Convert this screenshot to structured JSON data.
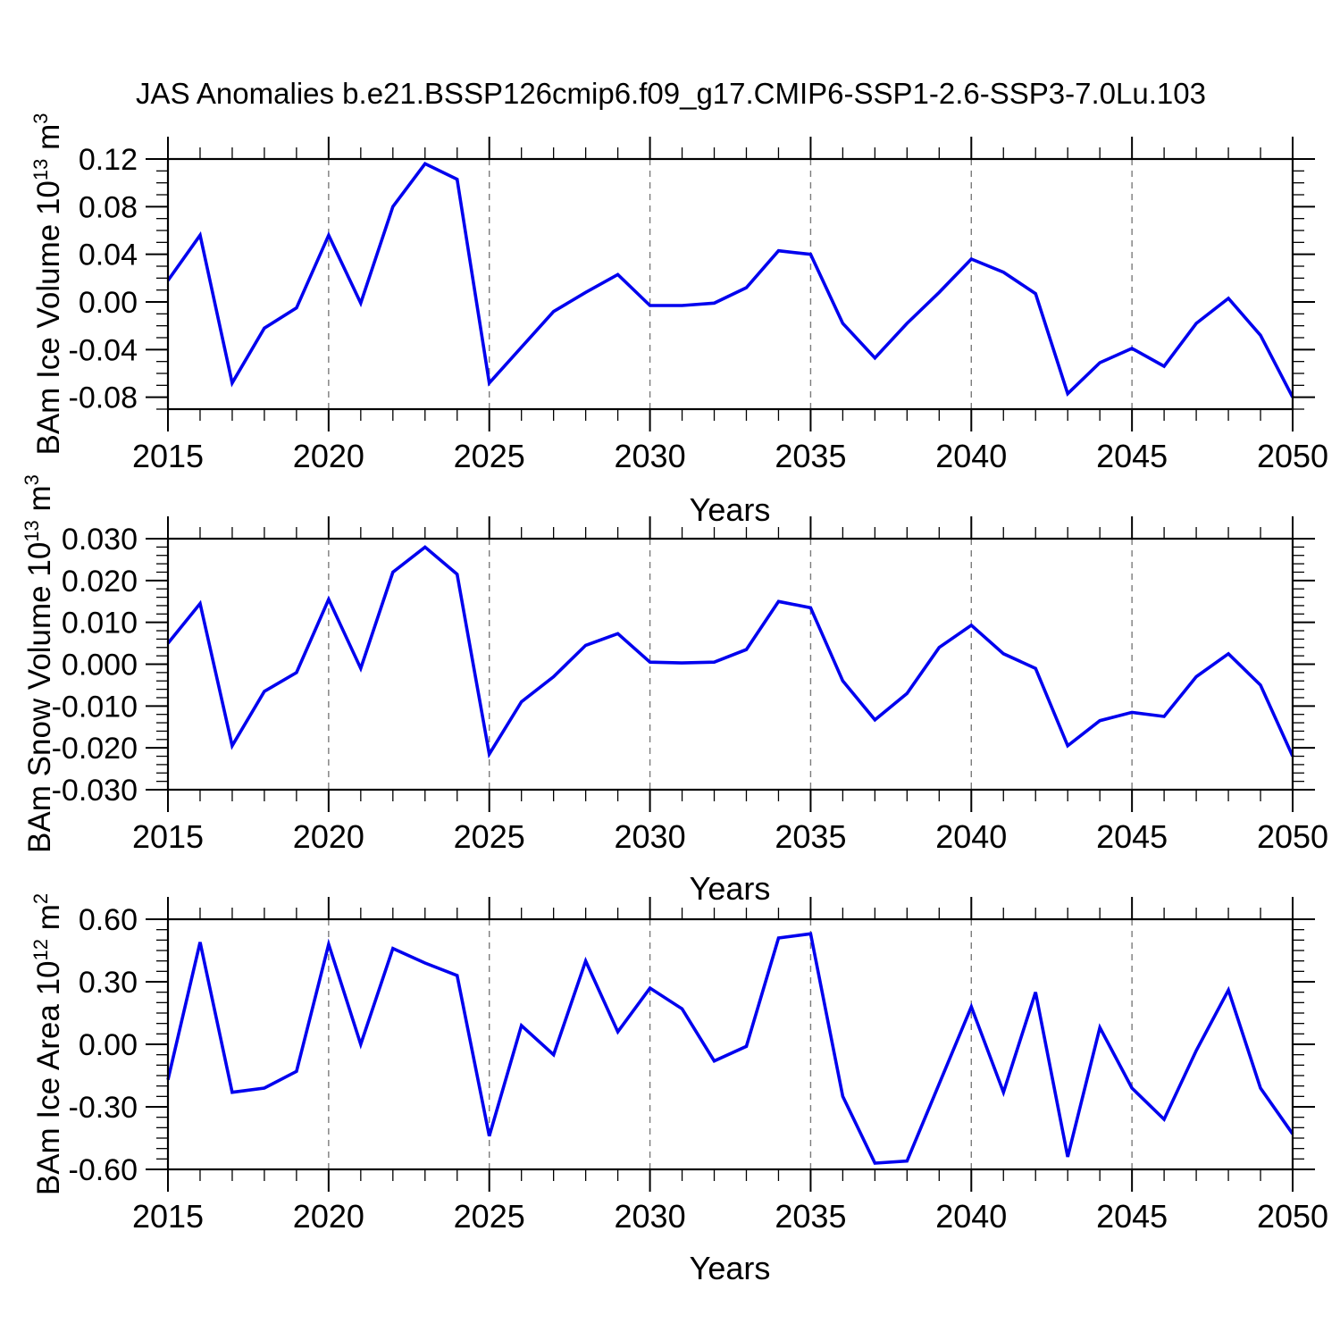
{
  "title": "JAS Anomalies b.e21.BSSP126cmip6.f09_g17.CMIP6-SSP1-2.6-SSP3-7.0Lu.103",
  "colors": {
    "line": "#0000EE",
    "grid": "#7b7b7b",
    "axis": "#000000"
  },
  "years": [
    2015,
    2016,
    2017,
    2018,
    2019,
    2020,
    2021,
    2022,
    2023,
    2024,
    2025,
    2026,
    2027,
    2028,
    2029,
    2030,
    2031,
    2032,
    2033,
    2034,
    2035,
    2036,
    2037,
    2038,
    2039,
    2040,
    2041,
    2042,
    2043,
    2044,
    2045,
    2046,
    2047,
    2048,
    2049,
    2050
  ],
  "x_axis": {
    "min": 2015,
    "max": 2050,
    "ticks": [
      {
        "v": 2015,
        "label": "2015"
      },
      {
        "v": 2020,
        "label": "2020"
      },
      {
        "v": 2025,
        "label": "2025"
      },
      {
        "v": 2030,
        "label": "2030"
      },
      {
        "v": 2035,
        "label": "2035"
      },
      {
        "v": 2040,
        "label": "2040"
      },
      {
        "v": 2045,
        "label": "2045"
      },
      {
        "v": 2050,
        "label": "2050"
      }
    ],
    "minor_step": 1,
    "grid_years": [
      2020,
      2025,
      2030,
      2035,
      2040,
      2045
    ]
  },
  "chart_data": [
    {
      "type": "line",
      "id": "ice-volume",
      "ylabel_plain": "BAm Ice Volume 10^13 m^3",
      "ylabel_parts": [
        {
          "t": "BAm Ice Volume 10"
        },
        {
          "t": "13",
          "sup": true
        },
        {
          "t": " m"
        },
        {
          "t": "3",
          "sup": true
        }
      ],
      "xlabel": "Years",
      "ylim": [
        -0.09,
        0.12
      ],
      "yminor_step": 0.01,
      "yticks": [
        {
          "v": 0.12,
          "label": "0.12"
        },
        {
          "v": 0.08,
          "label": "0.08"
        },
        {
          "v": 0.04,
          "label": "0.04"
        },
        {
          "v": 0.0,
          "label": "0.00"
        },
        {
          "v": -0.04,
          "label": "-0.04"
        },
        {
          "v": -0.08,
          "label": "-0.08"
        }
      ],
      "values": [
        0.018,
        0.056,
        -0.068,
        -0.022,
        -0.005,
        0.056,
        -0.001,
        0.08,
        0.116,
        0.103,
        -0.068,
        -0.038,
        -0.008,
        0.008,
        0.023,
        -0.003,
        -0.003,
        -0.001,
        0.012,
        0.043,
        0.04,
        -0.018,
        -0.047,
        -0.018,
        0.008,
        0.036,
        0.025,
        0.007,
        -0.077,
        -0.051,
        -0.039,
        -0.054,
        -0.018,
        0.003,
        -0.028,
        -0.08
      ]
    },
    {
      "type": "line",
      "id": "snow-volume",
      "ylabel_plain": "BAm Snow Volume 10^13 m^3",
      "ylabel_parts": [
        {
          "t": "BAm Snow Volume 10"
        },
        {
          "t": "13",
          "sup": true
        },
        {
          "t": " m"
        },
        {
          "t": "3",
          "sup": true
        }
      ],
      "xlabel": "Years",
      "ylim": [
        -0.03,
        0.03
      ],
      "yminor_step": 0.002,
      "yticks": [
        {
          "v": 0.03,
          "label": "0.030"
        },
        {
          "v": 0.02,
          "label": "0.020"
        },
        {
          "v": 0.01,
          "label": "0.010"
        },
        {
          "v": 0.0,
          "label": "0.000"
        },
        {
          "v": -0.01,
          "label": "-0.010"
        },
        {
          "v": -0.02,
          "label": "-0.020"
        },
        {
          "v": -0.03,
          "label": "-0.030"
        }
      ],
      "values": [
        0.005,
        0.0145,
        -0.0195,
        -0.0065,
        -0.002,
        0.0155,
        -0.001,
        0.022,
        0.028,
        0.0215,
        -0.0215,
        -0.009,
        -0.003,
        0.0045,
        0.0073,
        0.0005,
        0.0003,
        0.0005,
        0.0035,
        0.015,
        0.0135,
        -0.004,
        -0.0133,
        -0.007,
        0.004,
        0.0093,
        0.0025,
        -0.001,
        -0.0195,
        -0.0135,
        -0.0115,
        -0.0125,
        -0.003,
        0.0025,
        -0.005,
        -0.022
      ]
    },
    {
      "type": "line",
      "id": "ice-area",
      "ylabel_plain": "BAm Ice Area 10^12 m^2",
      "ylabel_parts": [
        {
          "t": "BAm Ice Area 10"
        },
        {
          "t": "12",
          "sup": true
        },
        {
          "t": " m"
        },
        {
          "t": "2",
          "sup": true
        }
      ],
      "xlabel": "Years",
      "ylim": [
        -0.6,
        0.6
      ],
      "yminor_step": 0.05,
      "yticks": [
        {
          "v": 0.6,
          "label": "0.60"
        },
        {
          "v": 0.3,
          "label": "0.30"
        },
        {
          "v": 0.0,
          "label": "0.00"
        },
        {
          "v": -0.3,
          "label": "-0.30"
        },
        {
          "v": -0.6,
          "label": "-0.60"
        }
      ],
      "values": [
        -0.17,
        0.49,
        -0.23,
        -0.21,
        -0.13,
        0.48,
        0.0,
        0.46,
        0.39,
        0.33,
        -0.44,
        0.09,
        -0.05,
        0.4,
        0.06,
        0.27,
        0.17,
        -0.08,
        -0.01,
        0.51,
        0.53,
        -0.25,
        -0.57,
        -0.56,
        -0.19,
        0.18,
        -0.23,
        0.25,
        -0.54,
        0.08,
        -0.21,
        -0.36,
        -0.03,
        0.26,
        -0.21,
        -0.43
      ]
    }
  ]
}
